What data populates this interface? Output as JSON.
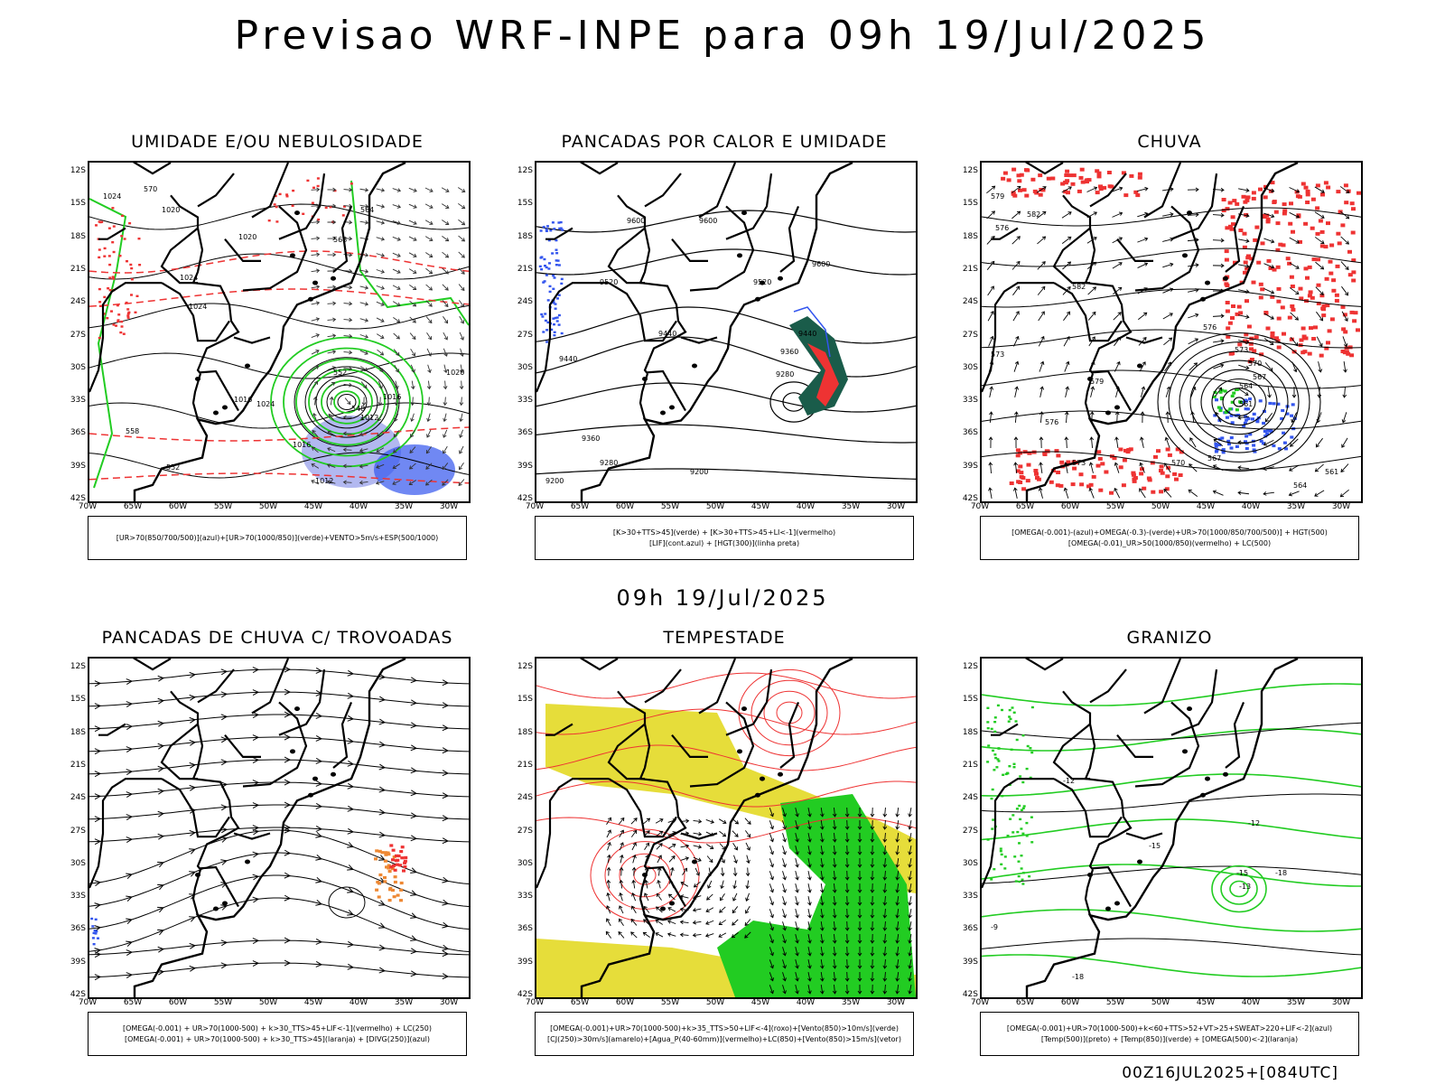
{
  "main_title": "Previsao WRF-INPE  para 09h 19/Jul/2025",
  "middle_date": "09h 19/Jul/2025",
  "footer": "00Z16JUL2025+[084UTC]",
  "lat_labels": [
    "12S",
    "15S",
    "18S",
    "21S",
    "24S",
    "27S",
    "30S",
    "33S",
    "36S",
    "39S",
    "42S"
  ],
  "lon_labels": [
    "70W",
    "65W",
    "60W",
    "55W",
    "50W",
    "45W",
    "40W",
    "35W",
    "30W"
  ],
  "panels": [
    {
      "title": "UMIDADE E/OU NEBULOSIDADE",
      "legend": [
        "[UR>70(850/700/500)](azul)+[UR>70(1000/850)](verde)+VENTO>5m/s+ESP(500/1000)"
      ]
    },
    {
      "title": "PANCADAS POR CALOR E UMIDADE",
      "legend": [
        "[K>30+TTS>45](verde) + [K>30+TTS>45+LI<-1](vermelho)",
        "[LIF](cont.azul) + [HGT(300)](linha preta)"
      ]
    },
    {
      "title": "CHUVA",
      "legend": [
        "[OMEGA(-0.001)-(azul)+OMEGA(-0.3)-(verde)+UR>70(1000/850/700/500)] + HGT(500)",
        "[OMEGA(-0.01)_UR>50(1000/850)(vermelho) + LC(500)"
      ]
    },
    {
      "title": "PANCADAS DE CHUVA C/ TROVOADAS",
      "legend": [
        "[OMEGA(-0.001) + UR>70(1000-500) + k>30_TTS>45+LIF<-1](vermelho) + LC(250)",
        "[OMEGA(-0.001) + UR>70(1000-500) + k>30_TTS>45](laranja) + [DIVG(250)](azul)"
      ]
    },
    {
      "title": "TEMPESTADE",
      "legend": [
        "[OMEGA(-0.001)+UR>70(1000-500)+k>35_TTS>50+LIF<-4](roxo)+[Vento(850)>10m/s](verde)",
        "[CJ(250)>30m/s](amarelo)+[Agua_P(40-60mm)](vermelho)+LC(850)+[Vento(850)>15m/s](vetor)"
      ]
    },
    {
      "title": "GRANIZO",
      "legend": [
        "[OMEGA(-0.001)+UR>70(1000-500)+k<60+TTS>52+VT>25+SWEAT>220+LIF<-2](azul)",
        "[Temp(500)](preto) + [Temp(850)](verde) + [OMEGA(500)<-2](laranja)"
      ]
    }
  ],
  "contour_labels": {
    "p1": [
      "1020",
      "1020",
      "1024",
      "1024",
      "1024",
      "1016",
      "1012",
      "1016",
      "1024",
      "1020",
      "1016",
      "1012",
      "570",
      "568",
      "564",
      "552",
      "548",
      "558",
      "552"
    ],
    "p2": [
      "9600",
      "9600",
      "9520",
      "9520",
      "9600",
      "9440",
      "9440",
      "9360",
      "9280",
      "9440",
      "9360",
      "9280",
      "9200",
      "9200"
    ],
    "p3": [
      "582",
      "582",
      "579",
      "576",
      "573",
      "570",
      "567",
      "564",
      "561",
      "576",
      "573",
      "570",
      "567",
      "564",
      "561",
      "579",
      "576",
      "573"
    ],
    "p6": [
      "-12",
      "-12",
      "-15",
      "-15",
      "-18",
      "-9",
      "-18",
      "-13"
    ]
  },
  "colors": {
    "blue": "#3355ee",
    "green": "#22cc22",
    "red": "#ee3333",
    "yellow": "#e6dd3a",
    "orange": "#ee8833",
    "darkgreen": "#1a5c4a",
    "lavender": "#aab0ee",
    "black": "#000000"
  }
}
